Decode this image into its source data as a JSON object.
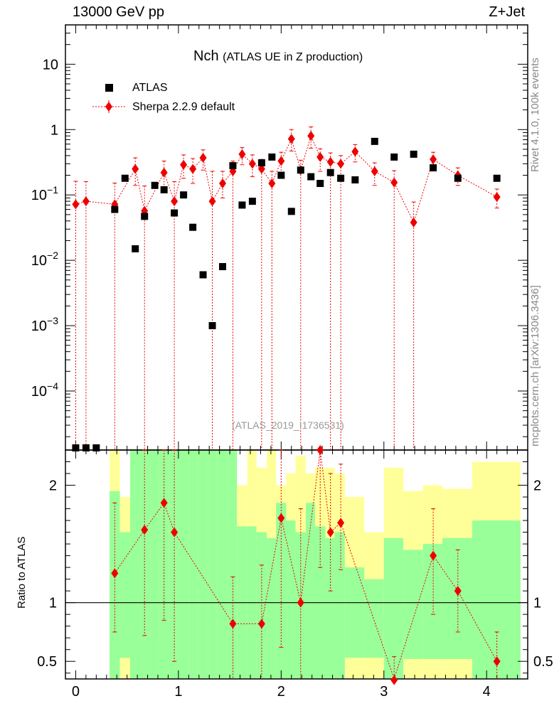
{
  "header": {
    "left": "13000 GeV pp",
    "right": "Z+Jet"
  },
  "side_labels": {
    "top": "Rivet 4.1.0,  100k events",
    "bottom": "mcplots.cern.ch [arXiv:1306.3436]"
  },
  "watermark": "(ATLAS_2019_I1736531)",
  "colors": {
    "data": "#000000",
    "mc": "#ee0000",
    "band_green": "#99ff99",
    "band_yellow": "#ffff99"
  },
  "chart_data": [
    {
      "type": "scatter",
      "panel": "main",
      "title": "Nch",
      "subtitle": "(ATLAS UE in Z production)",
      "xlabel": "",
      "ylabel": "",
      "xlim": [
        -0.1,
        4.4
      ],
      "ylim": [
        1.25e-05,
        40
      ],
      "yscale": "log",
      "ytick_labels": [
        "10",
        "1",
        "10−1",
        "10−2",
        "10−3",
        "10−4"
      ],
      "legend": {
        "position": "top-left",
        "entries": [
          "ATLAS",
          "Sherpa 2.2.9 default"
        ]
      },
      "series": [
        {
          "name": "ATLAS",
          "marker": "square",
          "x": [
            0.0,
            0.1,
            0.2,
            0.38,
            0.48,
            0.58,
            0.67,
            0.77,
            0.86,
            0.96,
            1.05,
            1.14,
            1.24,
            1.33,
            1.43,
            1.53,
            1.62,
            1.72,
            1.81,
            1.91,
            2.0,
            2.1,
            2.19,
            2.29,
            2.38,
            2.48,
            2.58,
            2.72,
            2.91,
            3.1,
            3.29,
            3.48,
            3.72,
            4.1
          ],
          "y": [
            1.25e-05,
            1.25e-05,
            1.25e-05,
            0.06,
            0.18,
            0.015,
            0.047,
            0.14,
            0.12,
            0.053,
            0.1,
            0.032,
            0.006,
            0.001,
            0.008,
            0.28,
            0.07,
            0.08,
            0.31,
            0.38,
            0.2,
            0.056,
            0.24,
            0.19,
            0.15,
            0.22,
            0.18,
            0.17,
            0.66,
            0.38,
            0.42,
            0.26,
            0.18,
            0.18
          ]
        },
        {
          "name": "Sherpa 2.2.9 default",
          "marker": "diamond",
          "x": [
            0.0,
            0.1,
            0.38,
            0.58,
            0.67,
            0.86,
            0.96,
            1.05,
            1.14,
            1.24,
            1.33,
            1.43,
            1.53,
            1.62,
            1.72,
            1.81,
            1.91,
            2.0,
            2.1,
            2.19,
            2.29,
            2.38,
            2.48,
            2.58,
            2.72,
            2.91,
            3.1,
            3.29,
            3.48,
            3.72,
            4.1
          ],
          "y": [
            0.072,
            0.08,
            0.072,
            0.25,
            0.057,
            0.22,
            0.08,
            0.29,
            0.25,
            0.37,
            0.08,
            0.15,
            0.23,
            0.42,
            0.3,
            0.25,
            0.15,
            0.33,
            0.72,
            0.24,
            0.8,
            0.38,
            0.32,
            0.3,
            0.46,
            0.23,
            0.155,
            0.038,
            0.35,
            0.2,
            0.093
          ],
          "yerr_low": [
            0.072,
            0.08,
            0.072,
            0.11,
            0.057,
            0.1,
            0.08,
            0.11,
            0.1,
            0.13,
            0.08,
            0.06,
            0.23,
            0.13,
            0.11,
            0.25,
            0.15,
            0.13,
            0.25,
            0.24,
            0.28,
            0.15,
            0.32,
            0.3,
            0.14,
            0.09,
            0.155,
            0.038,
            0.1,
            0.06,
            0.03
          ],
          "yerr_high": [
            0.09,
            0.08,
            0.08,
            0.12,
            0.08,
            0.11,
            0.08,
            0.12,
            0.11,
            0.12,
            0.15,
            0.08,
            0.1,
            0.11,
            0.11,
            0.1,
            0.08,
            0.12,
            0.28,
            0.1,
            0.3,
            0.13,
            0.12,
            0.1,
            0.13,
            0.08,
            0.08,
            0.04,
            0.1,
            0.06,
            0.03
          ]
        }
      ]
    },
    {
      "type": "scatter",
      "panel": "ratio",
      "title": "",
      "xlabel": "",
      "ylabel": "Ratio to ATLAS",
      "xlim": [
        -0.1,
        4.4
      ],
      "ylim": [
        0.35,
        2.3
      ],
      "xticks": [
        0,
        1,
        2,
        3,
        4
      ],
      "xtick_labels": [
        "0",
        "1",
        "2",
        "3",
        "4"
      ],
      "yticks": [
        0.5,
        1,
        2
      ],
      "ytick_labels": [
        "0.5",
        "1",
        "2"
      ],
      "reference_line": 1,
      "bands": {
        "edges": [
          0.33,
          0.43,
          0.53,
          0.62,
          0.72,
          0.81,
          0.91,
          1.0,
          1.1,
          1.19,
          1.29,
          1.38,
          1.48,
          1.57,
          1.67,
          1.76,
          1.86,
          1.95,
          2.05,
          2.14,
          2.24,
          2.33,
          2.43,
          2.52,
          2.62,
          2.81,
          3.0,
          3.19,
          3.38,
          3.57,
          3.86,
          4.33
        ],
        "yellow_low": [
          0.35,
          0.35,
          0.35,
          0.35,
          0.35,
          0.35,
          0.35,
          0.35,
          0.35,
          0.35,
          0.35,
          0.35,
          0.35,
          0.35,
          0.35,
          0.35,
          0.35,
          0.35,
          0.35,
          0.35,
          0.35,
          0.35,
          0.35,
          0.35,
          0.35,
          0.35,
          0.35,
          0.35,
          0.35,
          0.35,
          0.35
        ],
        "yellow_high": [
          2.3,
          1.9,
          2.3,
          2.3,
          2.3,
          2.3,
          2.3,
          2.3,
          2.3,
          2.3,
          2.3,
          2.3,
          2.3,
          2.0,
          2.3,
          2.15,
          2.3,
          2.0,
          2.1,
          2.25,
          2.1,
          2.15,
          2.15,
          2.1,
          1.9,
          1.6,
          2.15,
          1.95,
          2.0,
          1.97,
          2.2
        ],
        "green_low": [
          0.35,
          0.53,
          0.35,
          0.35,
          0.35,
          0.35,
          0.35,
          0.35,
          0.35,
          0.35,
          0.35,
          0.35,
          0.35,
          0.35,
          0.35,
          0.35,
          0.35,
          0.35,
          0.35,
          0.35,
          0.35,
          0.35,
          0.35,
          0.35,
          0.53,
          0.53,
          0.35,
          0.52,
          0.52,
          0.52,
          0.35
        ],
        "green_high": [
          1.95,
          1.6,
          2.3,
          2.3,
          2.3,
          2.3,
          2.3,
          2.3,
          2.3,
          2.3,
          2.3,
          2.3,
          2.3,
          1.65,
          1.65,
          1.6,
          1.55,
          1.85,
          1.7,
          1.6,
          1.85,
          1.65,
          1.55,
          1.6,
          1.3,
          1.2,
          1.55,
          1.45,
          1.5,
          1.55,
          1.7
        ]
      },
      "series": [
        {
          "name": "Sherpa 2.2.9 default / ATLAS",
          "marker": "diamond",
          "x": [
            0.38,
            0.67,
            0.86,
            0.96,
            1.53,
            1.81,
            2.0,
            2.19,
            2.38,
            2.48,
            2.58,
            3.1,
            3.48,
            3.72,
            4.1
          ],
          "y": [
            1.25,
            1.62,
            1.85,
            1.6,
            0.82,
            0.82,
            1.72,
            1.0,
            2.3,
            1.6,
            1.68,
            0.34,
            1.4,
            1.1,
            0.5
          ],
          "yerr_low": [
            0.5,
            0.9,
            1.0,
            1.1,
            0.5,
            0.6,
            1.1,
            0.8,
            1.0,
            0.5,
            0.4,
            0.2,
            0.5,
            0.35,
            0.2
          ],
          "yerr_high": [
            0.6,
            0.8,
            0.5,
            0.8,
            0.4,
            0.5,
            0.6,
            0.8,
            0.4,
            0.5,
            0.5,
            0.2,
            0.4,
            0.35,
            0.25
          ]
        }
      ]
    }
  ]
}
